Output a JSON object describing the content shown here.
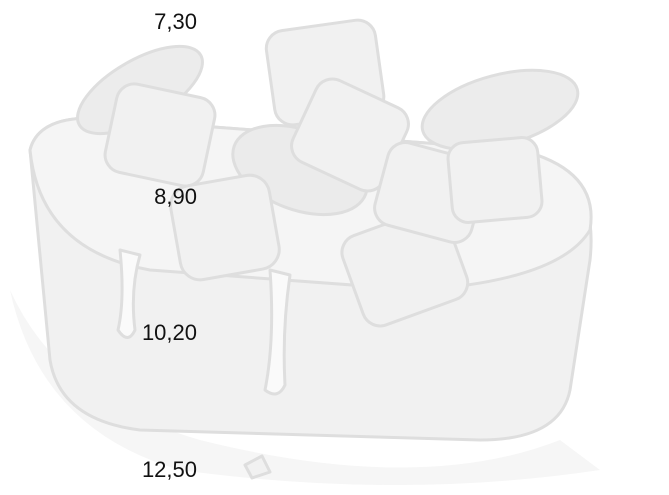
{
  "prices": [
    "7,30",
    "8,90",
    "10,20",
    "12,50"
  ]
}
